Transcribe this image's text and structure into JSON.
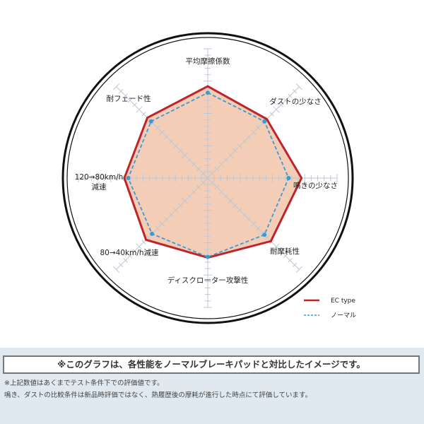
{
  "chart_data": {
    "type": "radar",
    "axes": [
      "平均摩擦係数",
      "ダストの少なさ",
      "鳴きの少なさ",
      "耐摩耗性",
      "ディスクローター攻撃性",
      "80→40km/h減速",
      "120→80km/h\n減速",
      "耐フェード性"
    ],
    "rmax": 20,
    "tick_step": 1,
    "grid": true,
    "legend_position": "bottom-right",
    "series": [
      {
        "name": "EC type",
        "color": "#c0232a",
        "style": "solid",
        "values": [
          14.2,
          12.9,
          14.5,
          13.8,
          12.3,
          13.5,
          12.9,
          13.2
        ]
      },
      {
        "name": "ノーマル",
        "color": "#3a9ad9",
        "style": "dashed",
        "values": [
          13.2,
          12.4,
          12.5,
          12.4,
          12.2,
          12.2,
          12.3,
          12.4
        ]
      }
    ],
    "fill_color": "#f3cdb5"
  },
  "footer": {
    "headline": "※このグラフは、各性能をノーマルブレーキパッドと対比したイメージです。",
    "note1": "※上記数値はあくまでテスト条件下での評価値です。",
    "note2": "鳴き、ダストの比較条件は新品時評価ではなく、熱履歴後の摩耗が進行した時点にて評価しています。"
  }
}
